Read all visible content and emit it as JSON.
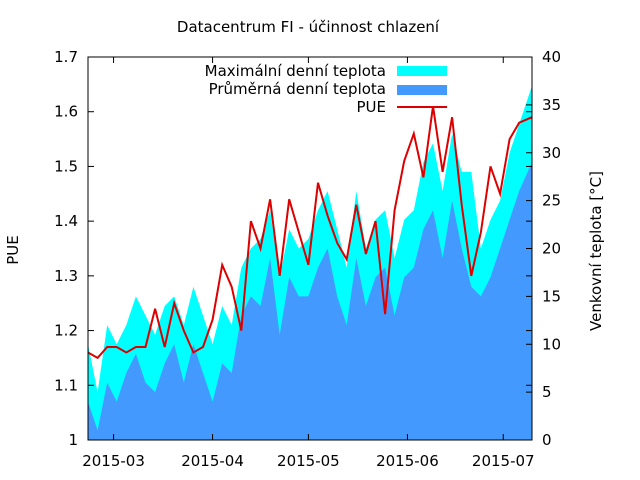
{
  "chart_data": {
    "type": "area",
    "title": "Datacentrum FI - účinnost chlazení",
    "ylabel": "PUE",
    "y2label": "Venkovní teplota [°C]",
    "ylim": [
      1,
      1.7
    ],
    "y2lim": [
      0,
      40
    ],
    "xlim": [
      "2015-02-21",
      "2015-07-10"
    ],
    "yticks": [
      "1",
      "1.1",
      "1.2",
      "1.3",
      "1.4",
      "1.5",
      "1.6",
      "1.7"
    ],
    "y2ticks": [
      "0",
      "5",
      "10",
      "15",
      "20",
      "25",
      "30",
      "35",
      "40"
    ],
    "xticks": [
      {
        "date": "2015-03-01",
        "label": "2015-03"
      },
      {
        "date": "2015-04-01",
        "label": "2015-04"
      },
      {
        "date": "2015-05-01",
        "label": "2015-05"
      },
      {
        "date": "2015-06-01",
        "label": "2015-06"
      },
      {
        "date": "2015-07-01",
        "label": "2015-07"
      }
    ],
    "legend_position": "top-right",
    "series": [
      {
        "name": "Maximální denní teplota",
        "color": "#00ffff",
        "style": "area",
        "axis": "y2",
        "x": [
          "2015-02-21",
          "2015-02-24",
          "2015-02-27",
          "2015-03-02",
          "2015-03-05",
          "2015-03-08",
          "2015-03-11",
          "2015-03-14",
          "2015-03-17",
          "2015-03-20",
          "2015-03-23",
          "2015-03-26",
          "2015-03-29",
          "2015-04-01",
          "2015-04-04",
          "2015-04-07",
          "2015-04-10",
          "2015-04-13",
          "2015-04-16",
          "2015-04-19",
          "2015-04-22",
          "2015-04-25",
          "2015-04-28",
          "2015-05-01",
          "2015-05-04",
          "2015-05-07",
          "2015-05-10",
          "2015-05-13",
          "2015-05-16",
          "2015-05-19",
          "2015-05-22",
          "2015-05-25",
          "2015-05-28",
          "2015-05-31",
          "2015-06-03",
          "2015-06-06",
          "2015-06-09",
          "2015-06-12",
          "2015-06-15",
          "2015-06-18",
          "2015-06-21",
          "2015-06-24",
          "2015-06-27",
          "2015-06-30",
          "2015-07-03",
          "2015-07-06",
          "2015-07-10"
        ],
        "values": [
          10,
          5,
          12,
          10,
          12,
          15,
          13,
          11,
          14,
          15,
          12,
          16,
          13,
          10,
          14,
          12,
          18,
          20,
          21,
          24,
          17,
          22,
          20,
          21,
          24,
          26,
          22,
          18,
          26,
          20,
          23,
          24,
          19,
          23,
          24,
          29,
          31,
          26,
          32,
          28,
          28,
          20,
          23,
          25,
          30,
          33,
          37
        ]
      },
      {
        "name": "Průměrná denní teplota",
        "color": "#4499ff",
        "style": "area",
        "axis": "y2",
        "x": [
          "2015-02-21",
          "2015-02-24",
          "2015-02-27",
          "2015-03-02",
          "2015-03-05",
          "2015-03-08",
          "2015-03-11",
          "2015-03-14",
          "2015-03-17",
          "2015-03-20",
          "2015-03-23",
          "2015-03-26",
          "2015-03-29",
          "2015-04-01",
          "2015-04-04",
          "2015-04-07",
          "2015-04-10",
          "2015-04-13",
          "2015-04-16",
          "2015-04-19",
          "2015-04-22",
          "2015-04-25",
          "2015-04-28",
          "2015-05-01",
          "2015-05-04",
          "2015-05-07",
          "2015-05-10",
          "2015-05-13",
          "2015-05-16",
          "2015-05-19",
          "2015-05-22",
          "2015-05-25",
          "2015-05-28",
          "2015-05-31",
          "2015-06-03",
          "2015-06-06",
          "2015-06-09",
          "2015-06-12",
          "2015-06-15",
          "2015-06-18",
          "2015-06-21",
          "2015-06-24",
          "2015-06-27",
          "2015-06-30",
          "2015-07-03",
          "2015-07-06",
          "2015-07-10"
        ],
        "values": [
          4,
          1,
          6,
          4,
          7,
          9,
          6,
          5,
          8,
          10,
          6,
          10,
          7,
          4,
          8,
          7,
          13,
          15,
          14,
          19,
          11,
          17,
          15,
          15,
          18,
          20,
          15,
          12,
          19,
          14,
          17,
          18,
          13,
          17,
          18,
          22,
          24,
          19,
          25,
          20,
          16,
          15,
          17,
          20,
          23,
          26,
          29
        ]
      },
      {
        "name": "PUE",
        "color": "#dd0000",
        "style": "line",
        "axis": "y",
        "x": [
          "2015-02-21",
          "2015-02-24",
          "2015-02-27",
          "2015-03-02",
          "2015-03-05",
          "2015-03-08",
          "2015-03-11",
          "2015-03-14",
          "2015-03-17",
          "2015-03-20",
          "2015-03-23",
          "2015-03-26",
          "2015-03-29",
          "2015-04-01",
          "2015-04-04",
          "2015-04-07",
          "2015-04-10",
          "2015-04-13",
          "2015-04-16",
          "2015-04-19",
          "2015-04-22",
          "2015-04-25",
          "2015-04-28",
          "2015-05-01",
          "2015-05-04",
          "2015-05-07",
          "2015-05-10",
          "2015-05-13",
          "2015-05-16",
          "2015-05-19",
          "2015-05-22",
          "2015-05-25",
          "2015-05-28",
          "2015-05-31",
          "2015-06-03",
          "2015-06-06",
          "2015-06-09",
          "2015-06-12",
          "2015-06-15",
          "2015-06-18",
          "2015-06-21",
          "2015-06-24",
          "2015-06-27",
          "2015-06-30",
          "2015-07-03",
          "2015-07-06",
          "2015-07-10"
        ],
        "values": [
          1.16,
          1.15,
          1.17,
          1.17,
          1.16,
          1.17,
          1.17,
          1.24,
          1.17,
          1.25,
          1.2,
          1.16,
          1.17,
          1.22,
          1.32,
          1.28,
          1.2,
          1.4,
          1.35,
          1.44,
          1.3,
          1.44,
          1.38,
          1.32,
          1.47,
          1.41,
          1.36,
          1.33,
          1.43,
          1.34,
          1.4,
          1.23,
          1.42,
          1.51,
          1.56,
          1.48,
          1.61,
          1.49,
          1.59,
          1.43,
          1.3,
          1.38,
          1.5,
          1.45,
          1.55,
          1.58,
          1.59
        ]
      }
    ]
  }
}
